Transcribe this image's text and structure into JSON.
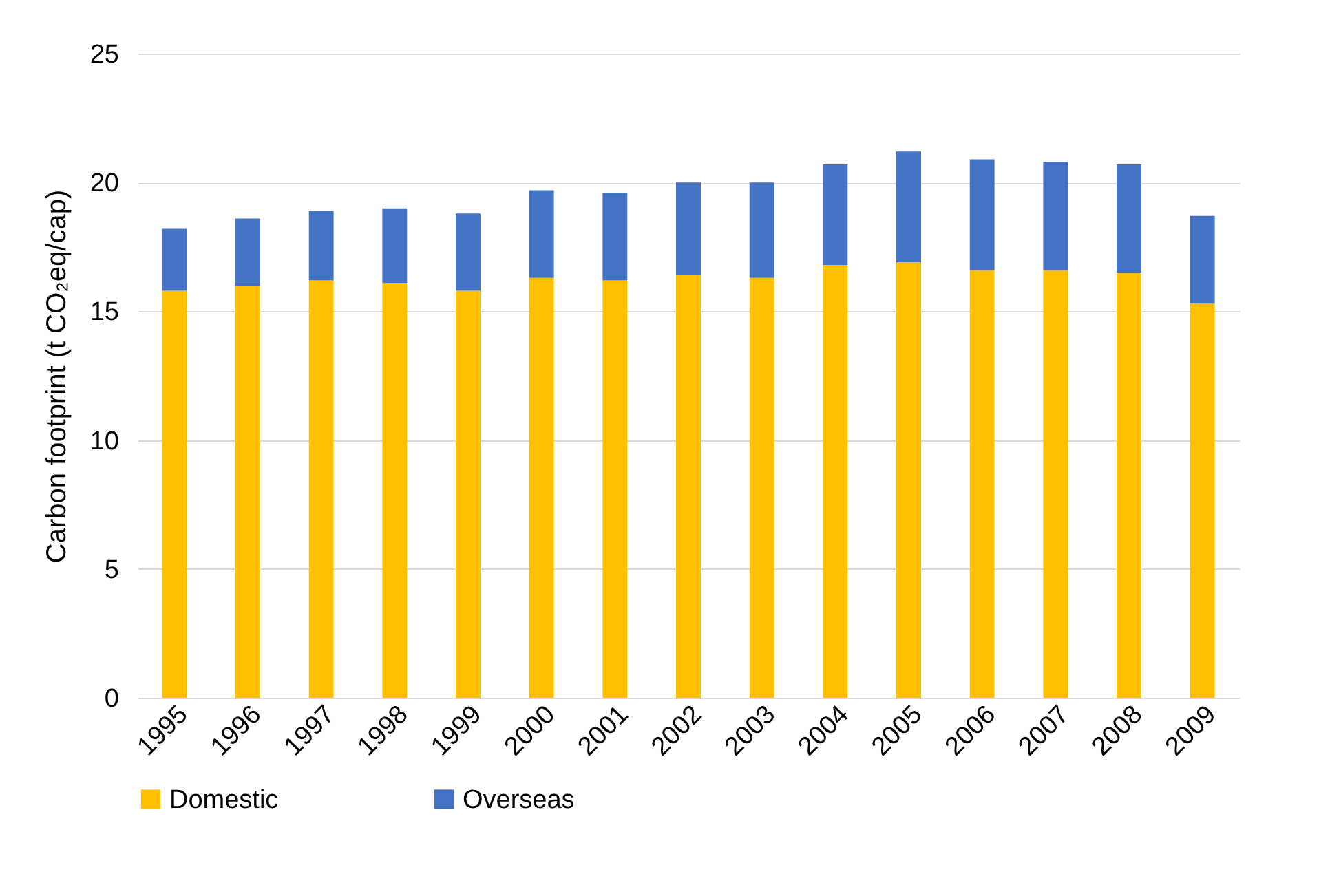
{
  "chart_data": {
    "type": "bar",
    "stacked": true,
    "ylabel": "Carbon footprint (t CO₂eq/cap)",
    "categories": [
      "1995",
      "1996",
      "1997",
      "1998",
      "1999",
      "2000",
      "2001",
      "2002",
      "2003",
      "2004",
      "2005",
      "2006",
      "2007",
      "2008",
      "2009"
    ],
    "series": [
      {
        "name": "Domestic",
        "color": "#ffc000",
        "values": [
          15.8,
          16.0,
          16.2,
          16.1,
          15.8,
          16.3,
          16.2,
          16.4,
          16.3,
          16.8,
          16.9,
          16.6,
          16.6,
          16.5,
          15.3
        ]
      },
      {
        "name": "Overseas",
        "color": "#4472c4",
        "values": [
          2.4,
          2.6,
          2.7,
          2.9,
          3.0,
          3.4,
          3.4,
          3.6,
          3.7,
          3.9,
          4.3,
          4.3,
          4.2,
          4.2,
          3.4
        ]
      }
    ],
    "ylim": [
      0,
      25
    ],
    "yticks": [
      0,
      5,
      10,
      15,
      20,
      25
    ],
    "grid": "y",
    "legend": "bottom"
  }
}
